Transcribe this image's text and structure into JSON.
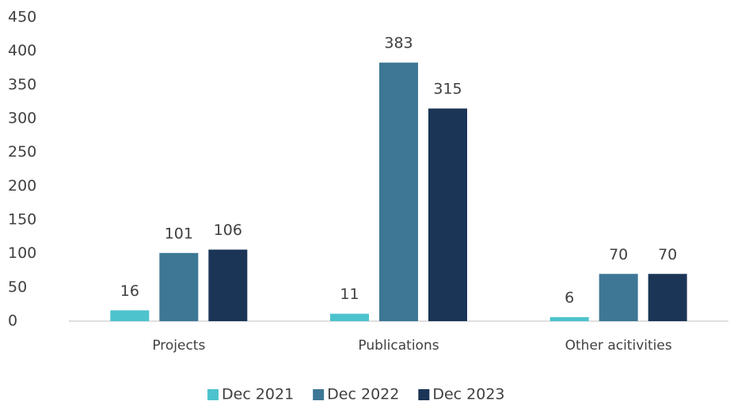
{
  "chart_data": {
    "type": "bar",
    "categories": [
      "Projects",
      "Publications",
      "Other acitivities"
    ],
    "series": [
      {
        "name": "Dec 2021",
        "color": "#4dc3cd",
        "values": [
          16,
          11,
          6
        ]
      },
      {
        "name": "Dec 2022",
        "color": "#3d7795",
        "values": [
          101,
          383,
          70
        ]
      },
      {
        "name": "Dec 2023",
        "color": "#1b3557",
        "values": [
          106,
          315,
          70
        ]
      }
    ],
    "ylim": [
      0,
      450
    ],
    "yticks": [
      0,
      50,
      100,
      150,
      200,
      250,
      300,
      350,
      400,
      450
    ],
    "grid": false,
    "legend": "bottom"
  }
}
